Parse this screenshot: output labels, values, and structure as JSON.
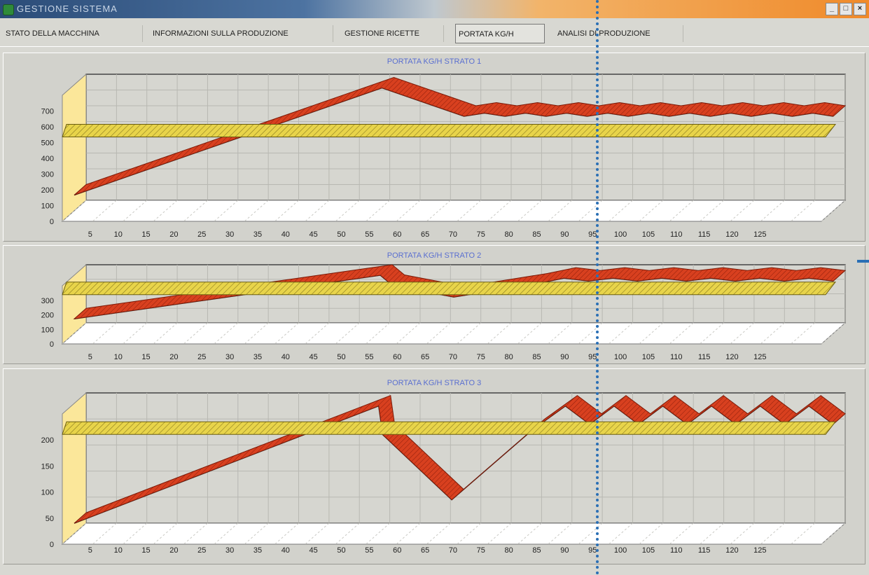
{
  "window": {
    "title": "GESTIONE SISTEMA",
    "controls": [
      "_",
      "□",
      "×"
    ]
  },
  "tabs": [
    {
      "label": "STATO DELLA MACCHINA",
      "active": false
    },
    {
      "label": "INFORMAZIONI SULLA PRODUZIONE",
      "active": false
    },
    {
      "label": "GESTIONE RICETTE",
      "active": false
    },
    {
      "label": "PORTATA KG/H",
      "active": true
    },
    {
      "label": "ANALISI DI PRODUZIONE",
      "active": false
    }
  ],
  "colors": {
    "series": "#d8401f",
    "band": "#e8d44a",
    "wall": "#fbe79a",
    "accent": "#2a6fb5",
    "title": "#5a6fd0"
  },
  "chart_data": [
    {
      "type": "area",
      "title": "PORTATA KG/H STRATO 1",
      "x": [
        5,
        10,
        15,
        20,
        25,
        30,
        35,
        40,
        45,
        50,
        55,
        60,
        65,
        70,
        75,
        80,
        85,
        90,
        95,
        100,
        105,
        110,
        115,
        120,
        125
      ],
      "yticks": [
        0,
        100,
        200,
        300,
        400,
        500,
        600,
        700
      ],
      "ylim": [
        0,
        800
      ],
      "setpoint": 500,
      "series": [
        {
          "points": [
            [
              0,
              100
            ],
            [
              75,
              780
            ],
            [
              95,
              600
            ],
            [
              100,
              620
            ],
            [
              105,
              600
            ],
            [
              110,
              620
            ],
            [
              115,
              600
            ],
            [
              120,
              620
            ],
            [
              125,
              600
            ],
            [
              130,
              620
            ],
            [
              135,
              600
            ],
            [
              140,
              620
            ],
            [
              145,
              600
            ],
            [
              150,
              620
            ],
            [
              155,
              600
            ],
            [
              160,
              620
            ],
            [
              165,
              600
            ],
            [
              170,
              620
            ],
            [
              175,
              600
            ],
            [
              180,
              620
            ],
            [
              185,
              600
            ]
          ]
        }
      ]
    },
    {
      "type": "area",
      "title": "PORTATA KG/H STRATO 2",
      "x": [
        5,
        10,
        15,
        20,
        25,
        30,
        35,
        40,
        45,
        50,
        55,
        60,
        65,
        70,
        75,
        80,
        85,
        90,
        95,
        100,
        105,
        110,
        115,
        120,
        125
      ],
      "yticks": [
        0,
        100,
        200,
        300
      ],
      "ylim": [
        0,
        400
      ],
      "setpoint": 300,
      "series": [
        {
          "points": [
            [
              0,
              100
            ],
            [
              75,
              400
            ],
            [
              78,
              330
            ],
            [
              93,
              250
            ],
            [
              113,
              340
            ],
            [
              120,
              380
            ],
            [
              126,
              360
            ],
            [
              132,
              380
            ],
            [
              138,
              360
            ],
            [
              144,
              380
            ],
            [
              150,
              360
            ],
            [
              156,
              380
            ],
            [
              162,
              360
            ],
            [
              168,
              380
            ],
            [
              174,
              360
            ],
            [
              180,
              380
            ],
            [
              186,
              360
            ]
          ]
        }
      ]
    },
    {
      "type": "area",
      "title": "PORTATA KG/H STRATO 3",
      "x": [
        5,
        10,
        15,
        20,
        25,
        30,
        35,
        40,
        45,
        50,
        55,
        60,
        65,
        70,
        75,
        80,
        85,
        90,
        95,
        100,
        105,
        110,
        115,
        120,
        125
      ],
      "yticks": [
        0,
        50,
        100,
        150,
        200
      ],
      "ylim": [
        0,
        250
      ],
      "setpoint": 200,
      "series": [
        {
          "points": [
            [
              0,
              20
            ],
            [
              75,
              245
            ],
            [
              76,
              190
            ],
            [
              93,
              65
            ],
            [
              113,
              200
            ],
            [
              121,
              245
            ],
            [
              127,
              210
            ],
            [
              133,
              245
            ],
            [
              139,
              210
            ],
            [
              145,
              245
            ],
            [
              151,
              210
            ],
            [
              157,
              245
            ],
            [
              163,
              210
            ],
            [
              169,
              245
            ],
            [
              175,
              210
            ],
            [
              181,
              245
            ],
            [
              187,
              210
            ]
          ]
        }
      ]
    }
  ]
}
